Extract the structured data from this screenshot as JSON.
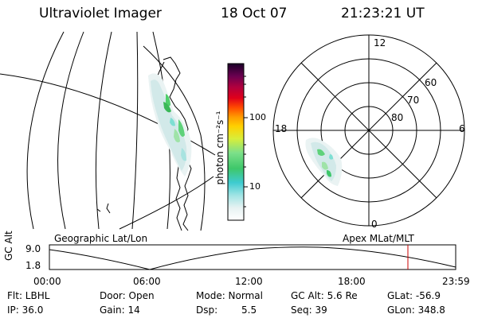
{
  "header": {
    "instrument": "Ultraviolet Imager",
    "date": "18 Oct 07",
    "time": "21:23:21 UT"
  },
  "colorbar": {
    "label": "photon cm⁻²s⁻¹",
    "ticks": [
      "100",
      "10"
    ],
    "scale": "log"
  },
  "polar_plot": {
    "mlt_labels": [
      "12",
      "18",
      "6",
      "0"
    ],
    "mlat_labels": [
      "60",
      "70",
      "80"
    ]
  },
  "altitude_plot": {
    "left_title": "Geographic Lat/Lon",
    "right_title": "Apex MLat/MLT",
    "ylabel": "GC Alt",
    "yticks": [
      "9.0",
      "1.8"
    ],
    "xticks": [
      "00:00",
      "06:00",
      "12:00",
      "18:00",
      "23:59"
    ],
    "current_time_marker": "21:23",
    "marker_color": "#cc0000"
  },
  "status": {
    "flt": "Flt: LBHL",
    "door": "Door: Open",
    "mode": "Mode: Normal",
    "gcalt": "GC Alt: 5.6 Re",
    "glat": "GLat: -56.9",
    "ip": "IP: 36.0",
    "gain": "Gain: 14",
    "dsp": "Dsp:",
    "dsp_value": "5.5",
    "seq": "Seq: 39",
    "glon": "GLon: 348.8"
  }
}
